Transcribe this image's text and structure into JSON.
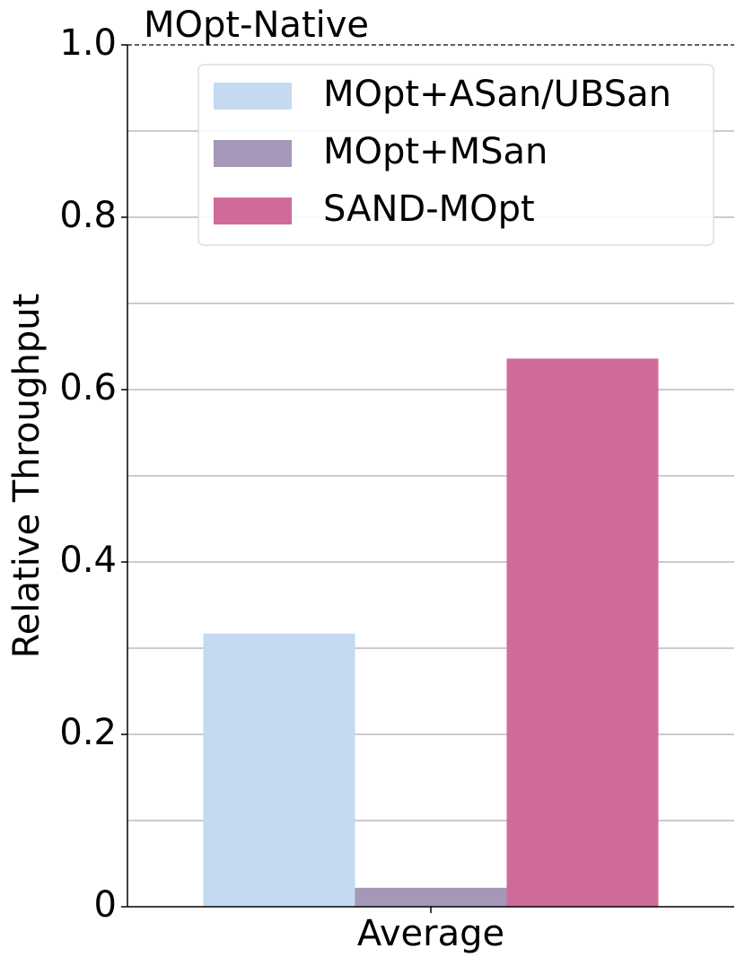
{
  "chart_data": {
    "type": "bar",
    "ylabel": "Relative Throughput",
    "categories": [
      "Average"
    ],
    "series": [
      {
        "name": "MOpt+ASan/UBSan",
        "color": "#c5d9f1",
        "values": [
          0.317
        ]
      },
      {
        "name": "MOpt+MSan",
        "color": "#a597b7",
        "values": [
          0.022
        ]
      },
      {
        "name": "SAND-MOpt",
        "color": "#cf6b9b",
        "values": [
          0.636
        ]
      }
    ],
    "ylim": [
      0,
      1
    ],
    "yticks": [
      0,
      0.2,
      0.4,
      0.6,
      {
        "value": 1,
        "label": "1.0"
      },
      0.8
    ],
    "minor_yticks": [
      0.1,
      0.3,
      0.5,
      0.7,
      0.9
    ],
    "reference_line": {
      "value": 1,
      "label": "MOpt-Native"
    },
    "grid": true,
    "legend": "upper right"
  }
}
